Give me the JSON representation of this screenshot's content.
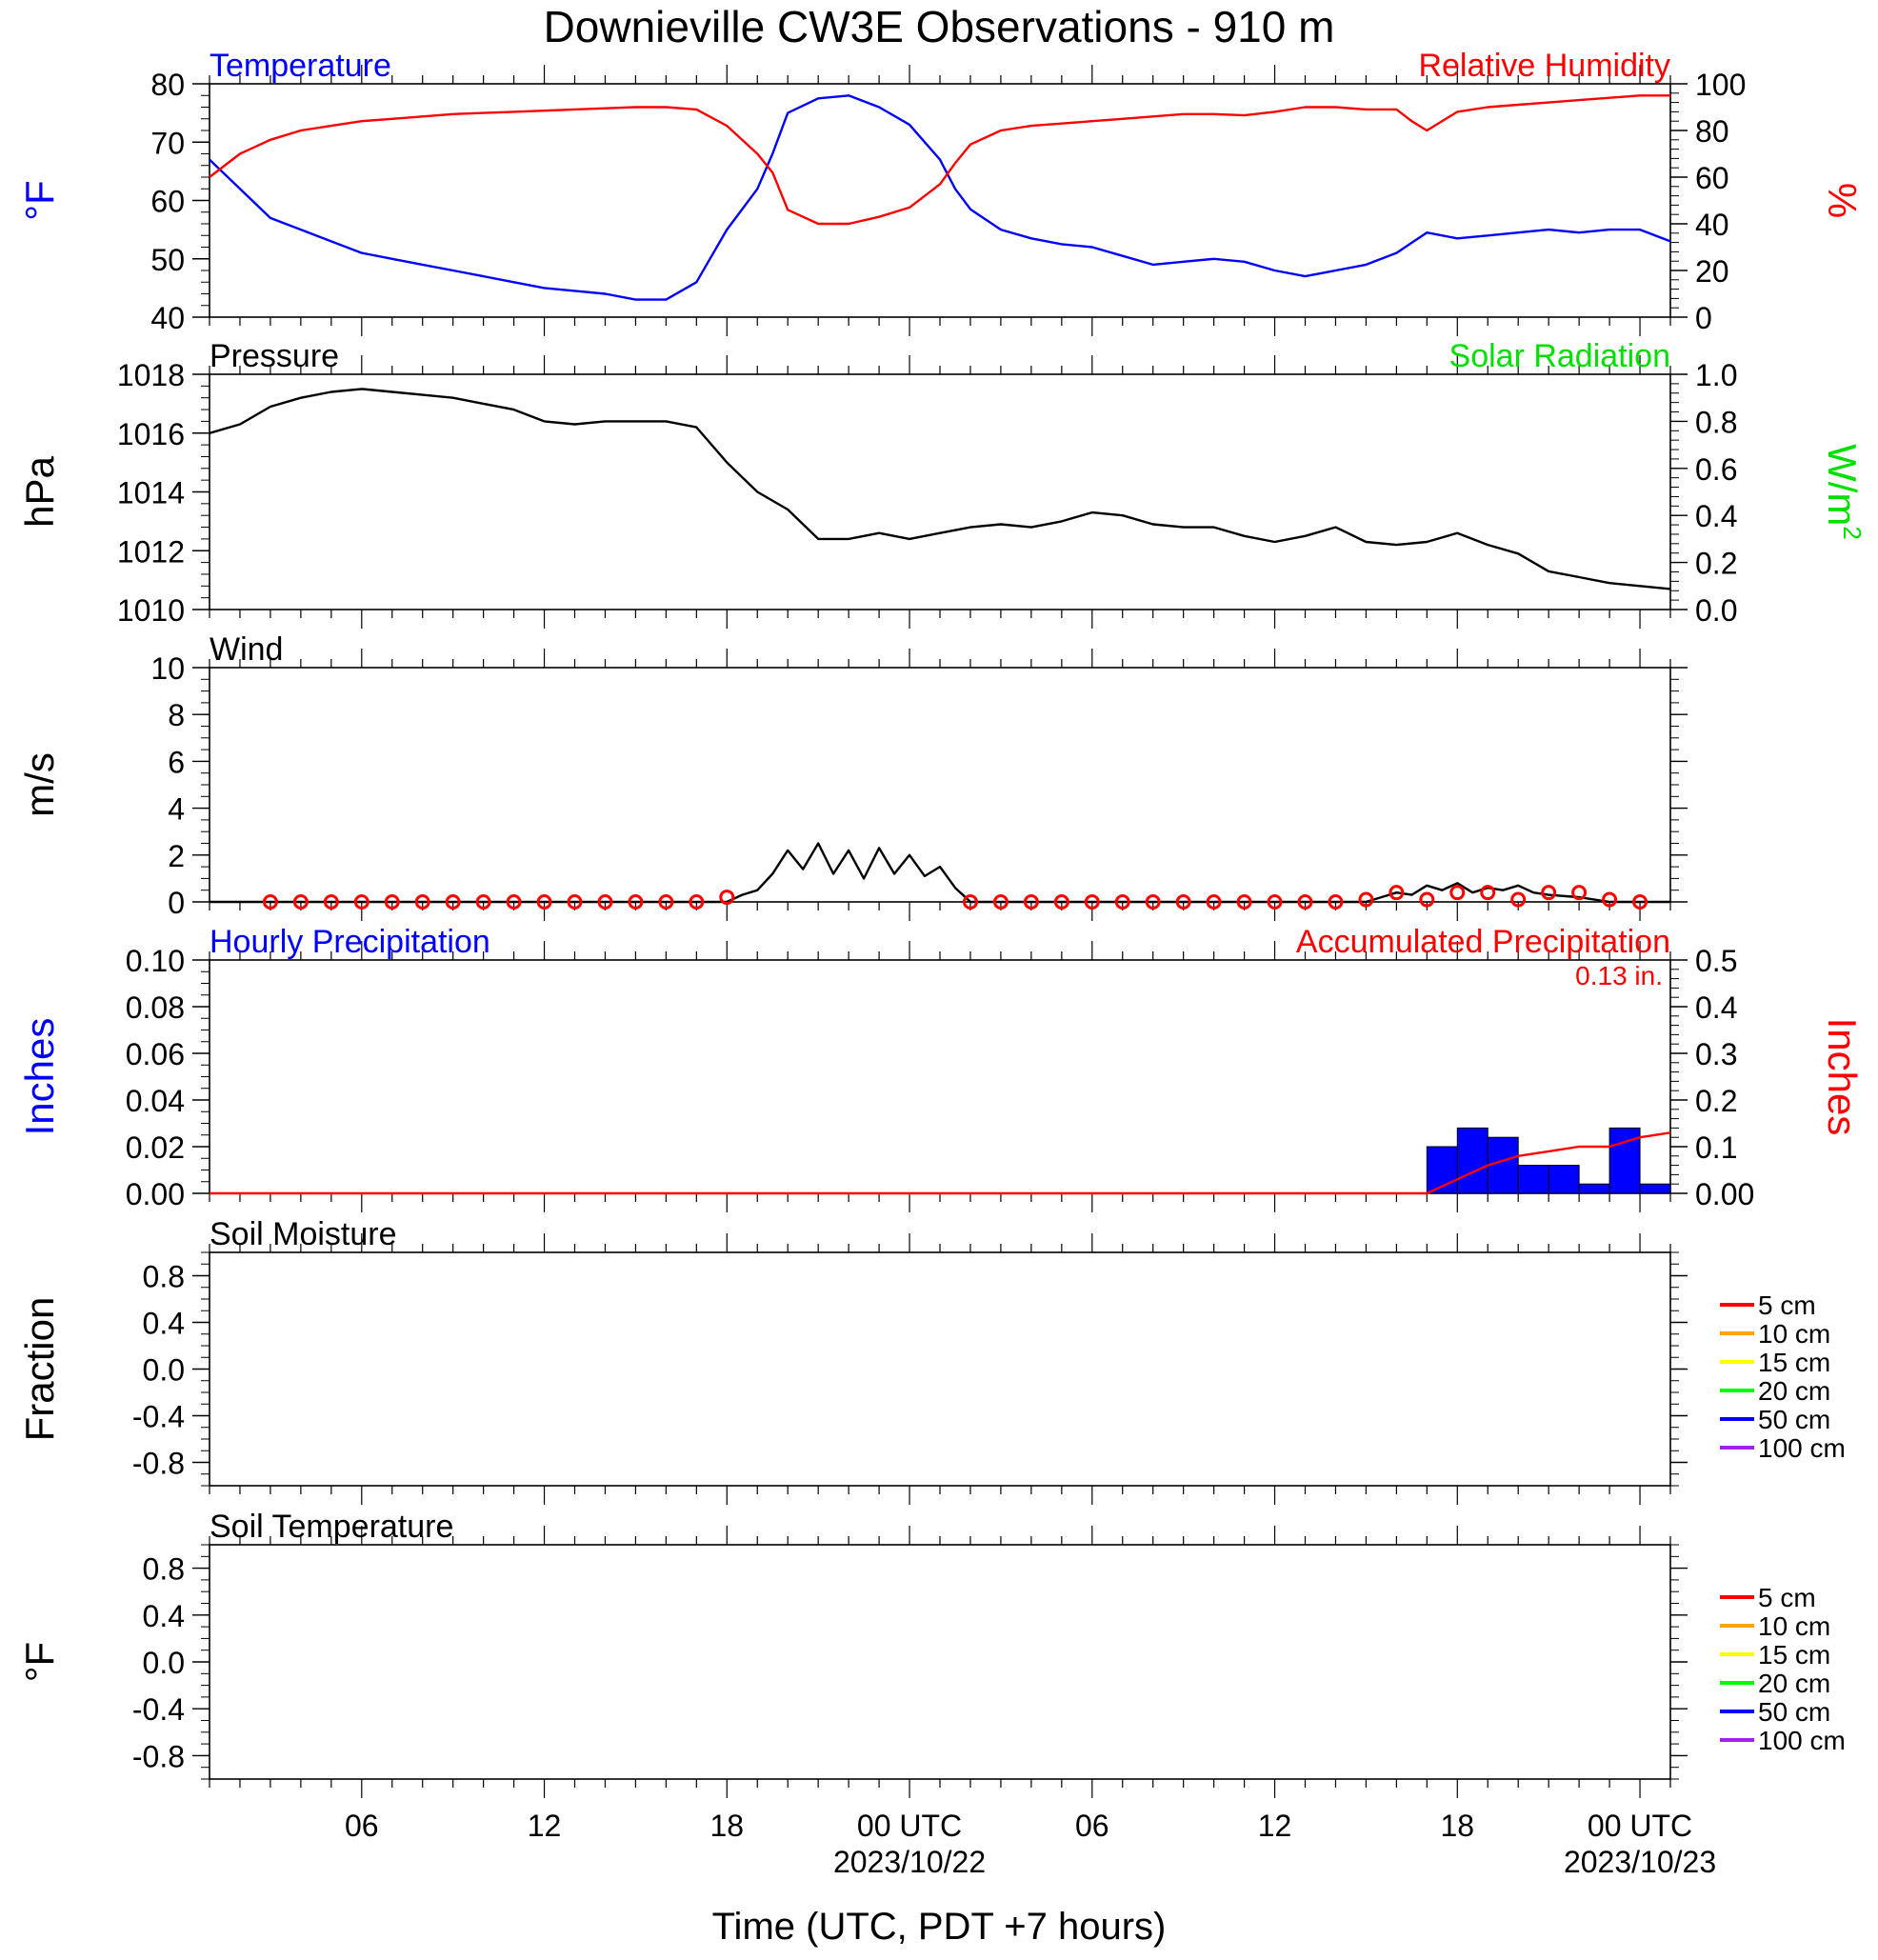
{
  "title": "Downieville CW3E Observations - 910 m",
  "xlabel": "Time (UTC, PDT +7 hours)",
  "x_axis": {
    "unit": "hours since start of plotted period",
    "range": [
      0,
      48
    ],
    "ticks": [
      {
        "x": 5,
        "label": "06",
        "date": ""
      },
      {
        "x": 11,
        "label": "12",
        "date": ""
      },
      {
        "x": 17,
        "label": "18",
        "date": ""
      },
      {
        "x": 23,
        "label": "00 UTC",
        "date": "2023/10/22"
      },
      {
        "x": 29,
        "label": "06",
        "date": ""
      },
      {
        "x": 35,
        "label": "12",
        "date": ""
      },
      {
        "x": 41,
        "label": "18",
        "date": ""
      },
      {
        "x": 47,
        "label": "00 UTC",
        "date": "2023/10/23"
      }
    ]
  },
  "colors": {
    "blue": "#0000ff",
    "red": "#ff0000",
    "green": "#00e000",
    "black": "#000000"
  },
  "chart_data": [
    {
      "id": "temp_rh",
      "type": "line",
      "left_title": "Temperature",
      "right_title": "Relative Humidity",
      "ylabel": "°F",
      "ylabel_sup": "",
      "ylabel_right": "%",
      "ylim": [
        40,
        80
      ],
      "yticks": [
        "40",
        "50",
        "60",
        "70",
        "80"
      ],
      "ylim_right": [
        0,
        100
      ],
      "yticks_right": [
        "0",
        "20",
        "40",
        "60",
        "80",
        "100"
      ],
      "series": [
        {
          "name": "Temperature",
          "axis": "left",
          "color": "#0000ff",
          "x": [
            0,
            1,
            2,
            3,
            4,
            5,
            6,
            7,
            8,
            9,
            10,
            11,
            12,
            13,
            14,
            15,
            16,
            17,
            18,
            18.5,
            19,
            20,
            21,
            22,
            23,
            24,
            24.5,
            25,
            26,
            27,
            28,
            29,
            30,
            31,
            32,
            33,
            34,
            35,
            36,
            37,
            38,
            39,
            40,
            41,
            42,
            43,
            44,
            45,
            46,
            47,
            48
          ],
          "y": [
            67,
            62,
            57,
            55,
            53,
            51,
            50,
            49,
            48,
            47,
            46,
            45,
            44.5,
            44,
            43,
            43,
            46,
            55,
            62,
            68,
            75,
            77.5,
            78,
            76,
            73,
            67,
            62,
            58.5,
            55,
            53.5,
            52.5,
            52,
            50.5,
            49,
            49.5,
            50,
            49.5,
            48,
            47,
            48,
            49,
            51,
            54.5,
            53.5,
            54,
            54.5,
            55,
            54.5,
            55,
            55,
            53
          ]
        },
        {
          "name": "Relative Humidity",
          "axis": "right",
          "color": "#ff0000",
          "x": [
            0,
            1,
            2,
            3,
            4,
            5,
            6,
            7,
            8,
            9,
            10,
            11,
            12,
            13,
            14,
            15,
            16,
            17,
            18,
            18.5,
            19,
            20,
            21,
            22,
            23,
            24,
            24.5,
            25,
            26,
            27,
            28,
            29,
            30,
            31,
            32,
            33,
            34,
            35,
            36,
            37,
            38,
            39,
            39.5,
            40,
            41,
            42,
            43,
            44,
            45,
            46,
            47,
            48
          ],
          "y": [
            60,
            70,
            76,
            80,
            82,
            84,
            85,
            86,
            87,
            87.5,
            88,
            88.5,
            89,
            89.5,
            90,
            90,
            89,
            82,
            70,
            62,
            46,
            40,
            40,
            43,
            47,
            57,
            66,
            74,
            80,
            82,
            83,
            84,
            85,
            86,
            87,
            87,
            86.5,
            88,
            90,
            90,
            89,
            89,
            84,
            80,
            88,
            90,
            91,
            92,
            93,
            94,
            95,
            95
          ]
        }
      ]
    },
    {
      "id": "pressure",
      "type": "line",
      "left_title": "Pressure",
      "right_title": "Solar Radiation",
      "ylabel": "hPa",
      "ylabel_sup": "",
      "ylabel_right": "W/m",
      "ylabel_right_sup": "2",
      "ylim": [
        1010,
        1018
      ],
      "yticks": [
        "1010",
        "1012",
        "1014",
        "1016",
        "1018"
      ],
      "ylim_right": [
        0,
        1
      ],
      "yticks_right": [
        "0.0",
        "0.2",
        "0.4",
        "0.6",
        "0.8",
        "1.0"
      ],
      "series": [
        {
          "name": "Pressure",
          "axis": "left",
          "color": "#000000",
          "x": [
            0,
            1,
            2,
            3,
            4,
            5,
            6,
            7,
            8,
            9,
            10,
            11,
            12,
            13,
            14,
            15,
            16,
            17,
            18,
            19,
            20,
            21,
            22,
            23,
            24,
            25,
            26,
            27,
            28,
            29,
            30,
            31,
            32,
            33,
            34,
            35,
            36,
            37,
            38,
            39,
            40,
            41,
            42,
            43,
            44,
            45,
            46,
            47,
            48
          ],
          "y": [
            1016.0,
            1016.3,
            1016.9,
            1017.2,
            1017.4,
            1017.5,
            1017.4,
            1017.3,
            1017.2,
            1017.0,
            1016.8,
            1016.4,
            1016.3,
            1016.4,
            1016.4,
            1016.4,
            1016.2,
            1015.0,
            1014.0,
            1013.4,
            1012.4,
            1012.4,
            1012.6,
            1012.4,
            1012.6,
            1012.8,
            1012.9,
            1012.8,
            1013.0,
            1013.3,
            1013.2,
            1012.9,
            1012.8,
            1012.8,
            1012.5,
            1012.3,
            1012.5,
            1012.8,
            1012.3,
            1012.2,
            1012.3,
            1012.6,
            1012.2,
            1011.9,
            1011.3,
            1011.1,
            1010.9,
            1010.8,
            1010.7
          ]
        }
      ]
    },
    {
      "id": "wind",
      "type": "line",
      "left_title": "Wind",
      "right_title": "",
      "ylabel": "m/s",
      "ylabel_sup": "",
      "ylabel_right": "",
      "ylim": [
        0,
        10
      ],
      "yticks": [
        "0",
        "2",
        "4",
        "6",
        "8",
        "10"
      ],
      "series": [
        {
          "name": "",
          "axis": "left",
          "color": "#000000",
          "x": [
            0,
            1,
            2,
            3,
            4,
            5,
            6,
            7,
            8,
            9,
            10,
            11,
            12,
            13,
            14,
            15,
            16,
            17,
            17.5,
            18,
            18.5,
            19,
            19.5,
            20,
            20.5,
            21,
            21.5,
            22,
            22.5,
            23,
            23.5,
            24,
            24.5,
            25,
            26,
            27,
            28,
            29,
            30,
            31,
            32,
            33,
            34,
            35,
            36,
            37,
            38,
            38.5,
            39,
            39.5,
            40,
            40.5,
            41,
            41.5,
            42,
            42.5,
            43,
            43.5,
            44,
            45,
            46,
            47,
            48
          ],
          "y": [
            0,
            0,
            0,
            0,
            0,
            0,
            0,
            0,
            0,
            0,
            0,
            0,
            0,
            0,
            0,
            0,
            0,
            0,
            0.3,
            0.5,
            1.2,
            2.2,
            1.4,
            2.5,
            1.2,
            2.2,
            1.0,
            2.3,
            1.2,
            2.0,
            1.1,
            1.5,
            0.6,
            0,
            0,
            0,
            0,
            0,
            0,
            0,
            0,
            0,
            0,
            0,
            0,
            0,
            0,
            0.2,
            0.4,
            0.3,
            0.7,
            0.5,
            0.8,
            0.4,
            0.6,
            0.5,
            0.7,
            0.4,
            0.3,
            0.2,
            0,
            0,
            0
          ]
        },
        {
          "name": "",
          "axis": "left",
          "color": "#ff0000",
          "kind": "markers",
          "x": [
            2,
            3,
            4,
            5,
            6,
            7,
            8,
            9,
            10,
            11,
            12,
            13,
            14,
            15,
            16,
            17,
            25,
            26,
            27,
            28,
            29,
            30,
            31,
            32,
            33,
            34,
            35,
            36,
            37,
            38,
            39,
            40,
            41,
            42,
            43,
            44,
            45,
            46,
            47
          ],
          "y": [
            0,
            0,
            0,
            0,
            0,
            0,
            0,
            0,
            0,
            0,
            0,
            0,
            0,
            0,
            0,
            0.2,
            0,
            0,
            0,
            0,
            0,
            0,
            0,
            0,
            0,
            0,
            0,
            0,
            0,
            0.1,
            0.4,
            0.1,
            0.4,
            0.4,
            0.1,
            0.4,
            0.4,
            0.1,
            0
          ]
        }
      ]
    },
    {
      "id": "precip",
      "type": "bar",
      "left_title": "Hourly Precipitation",
      "right_title": "Accumulated Precipitation",
      "total_label": "0.13 in.",
      "ylabel": "Inches",
      "ylabel_sup": "",
      "ylabel_right": "Inches",
      "ylim": [
        0,
        0.1
      ],
      "yticks": [
        "0.00",
        "0.02",
        "0.04",
        "0.06",
        "0.08",
        "0.10"
      ],
      "ylim_right": [
        0,
        0.5
      ],
      "yticks_right": [
        "0.00",
        "0.1",
        "0.2",
        "0.3",
        "0.4",
        "0.5"
      ],
      "bars": {
        "name": "Hourly Precipitation",
        "color": "#0000ff",
        "x_start": [
          40,
          41,
          42,
          43,
          44,
          45,
          46,
          47
        ],
        "values": [
          0.02,
          0.028,
          0.024,
          0.012,
          0.012,
          0.004,
          0.028,
          0.004
        ]
      },
      "series": [
        {
          "name": "Accumulated Precipitation",
          "axis": "right",
          "color": "#ff0000",
          "x": [
            0,
            40,
            41,
            42,
            43,
            44,
            45,
            46,
            47,
            48
          ],
          "y": [
            0,
            0,
            0.03,
            0.06,
            0.08,
            0.09,
            0.1,
            0.1,
            0.12,
            0.13
          ]
        }
      ]
    },
    {
      "id": "soil_moisture",
      "type": "line",
      "left_title": "Soil Moisture",
      "right_title": "",
      "ylabel": "Fraction",
      "ylabel_sup": "",
      "ylabel_right": "",
      "ylim": [
        -1,
        1
      ],
      "yticks": [
        "-0.8",
        "-0.4",
        "0.0",
        "0.4",
        "0.8"
      ],
      "legend": [
        {
          "label": "5 cm",
          "color": "#ff0000"
        },
        {
          "label": "10 cm",
          "color": "#ffa500"
        },
        {
          "label": "15 cm",
          "color": "#ffff00"
        },
        {
          "label": "20 cm",
          "color": "#00ff00"
        },
        {
          "label": "50 cm",
          "color": "#0000ff"
        },
        {
          "label": "100 cm",
          "color": "#a020f0"
        }
      ],
      "series": []
    },
    {
      "id": "soil_temp",
      "type": "line",
      "left_title": "Soil Temperature",
      "right_title": "",
      "ylabel": "°F",
      "ylabel_sup": "",
      "ylabel_right": "",
      "ylim": [
        -1,
        1
      ],
      "yticks": [
        "-0.8",
        "-0.4",
        "0.0",
        "0.4",
        "0.8"
      ],
      "legend": [
        {
          "label": "5 cm",
          "color": "#ff0000"
        },
        {
          "label": "10 cm",
          "color": "#ffa500"
        },
        {
          "label": "15 cm",
          "color": "#ffff00"
        },
        {
          "label": "20 cm",
          "color": "#00ff00"
        },
        {
          "label": "50 cm",
          "color": "#0000ff"
        },
        {
          "label": "100 cm",
          "color": "#a020f0"
        }
      ],
      "series": []
    }
  ]
}
